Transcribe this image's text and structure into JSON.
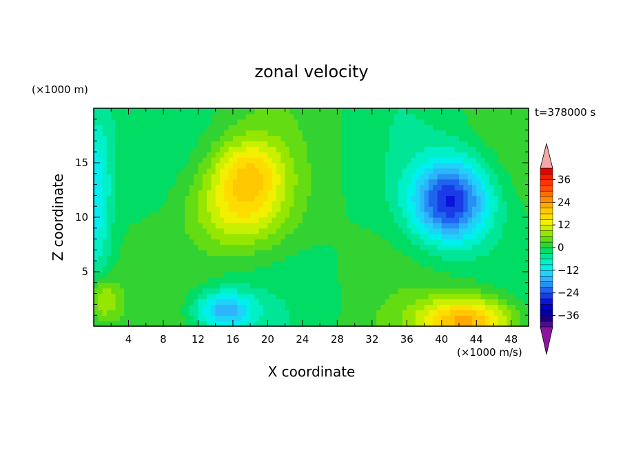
{
  "chart_data": {
    "type": "heatmap",
    "title": "zonal velocity",
    "xlabel": "X coordinate",
    "ylabel": "Z coordinate",
    "x_unit": "(×1000 m/s)",
    "y_unit": "(×1000 m)",
    "time_label": "t=378000 s",
    "xlim": [
      0,
      50
    ],
    "ylim": [
      0,
      20
    ],
    "x_ticks": [
      4,
      8,
      12,
      16,
      20,
      24,
      28,
      32,
      36,
      40,
      44,
      48
    ],
    "y_ticks": [
      5,
      10,
      15
    ],
    "colorbar": {
      "levels": [
        -42,
        -39,
        -36,
        -33,
        -30,
        -27,
        -24,
        -21,
        -18,
        -15,
        -12,
        -9,
        -6,
        -3,
        0,
        3,
        6,
        9,
        12,
        15,
        18,
        21,
        24,
        27,
        30,
        33,
        36,
        39,
        42
      ],
      "colors": [
        "#4b0a8c",
        "#1a0080",
        "#0000a0",
        "#0000c8",
        "#0a14d8",
        "#1a3ce6",
        "#1e64f0",
        "#2890f5",
        "#2eb4fa",
        "#1ed2f8",
        "#00f0f0",
        "#00f0c8",
        "#00e696",
        "#00dc64",
        "#32d232",
        "#64dc14",
        "#96e600",
        "#c8f000",
        "#f0f000",
        "#ffdc00",
        "#ffc800",
        "#ffaa00",
        "#ff8c00",
        "#ff6e00",
        "#ff5000",
        "#ff3200",
        "#f01e00",
        "#e60000"
      ],
      "under_color": "#8c14a0",
      "over_color": "#f4a8a8",
      "tick_labels": [
        "36",
        "24",
        "12",
        "0",
        "−12",
        "−24",
        "−36"
      ],
      "tick_values": [
        36,
        24,
        12,
        0,
        -12,
        -24,
        -36
      ]
    },
    "features": [
      {
        "x": 17,
        "z": 11,
        "value": 14,
        "sx": 5.5,
        "sz": 4.0
      },
      {
        "x": 18,
        "z": 14.5,
        "value": 11,
        "sx": 4,
        "sz": 3
      },
      {
        "x": 41,
        "z": 11.5,
        "value": -27,
        "sx": 4.5,
        "sz": 3.8
      },
      {
        "x": 43,
        "z": 0.5,
        "value": 22,
        "sx": 5.5,
        "sz": 2.2
      },
      {
        "x": 15,
        "z": 1.5,
        "value": -16,
        "sx": 3.5,
        "sz": 1.8
      },
      {
        "x": 1,
        "z": 2.5,
        "value": 10,
        "sx": 1.8,
        "sz": 2
      },
      {
        "x": 0,
        "z": 12,
        "value": -12,
        "sx": 2,
        "sz": 8
      }
    ]
  }
}
